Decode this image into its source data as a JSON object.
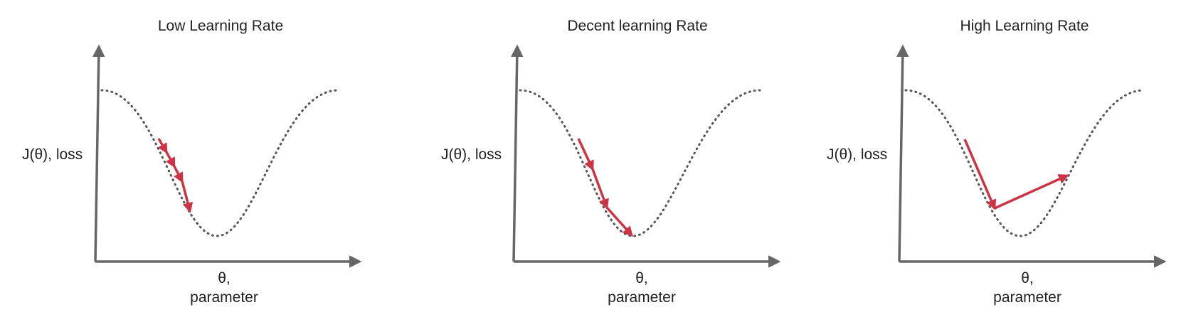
{
  "colors": {
    "axis": "#666666",
    "curve": "#555555",
    "arrow": "#cc3344",
    "text": "#222222"
  },
  "panels": [
    {
      "title": "Low Learning Rate",
      "y_label": "J(θ), loss",
      "x_label_line1": "θ,",
      "x_label_line2": "parameter"
    },
    {
      "title": "Decent learning Rate",
      "y_label": "J(θ), loss",
      "x_label_line1": "θ,",
      "x_label_line2": "parameter"
    },
    {
      "title": "High Learning Rate",
      "y_label": "J(θ), loss",
      "x_label_line1": "θ,",
      "x_label_line2": "parameter"
    }
  ]
}
